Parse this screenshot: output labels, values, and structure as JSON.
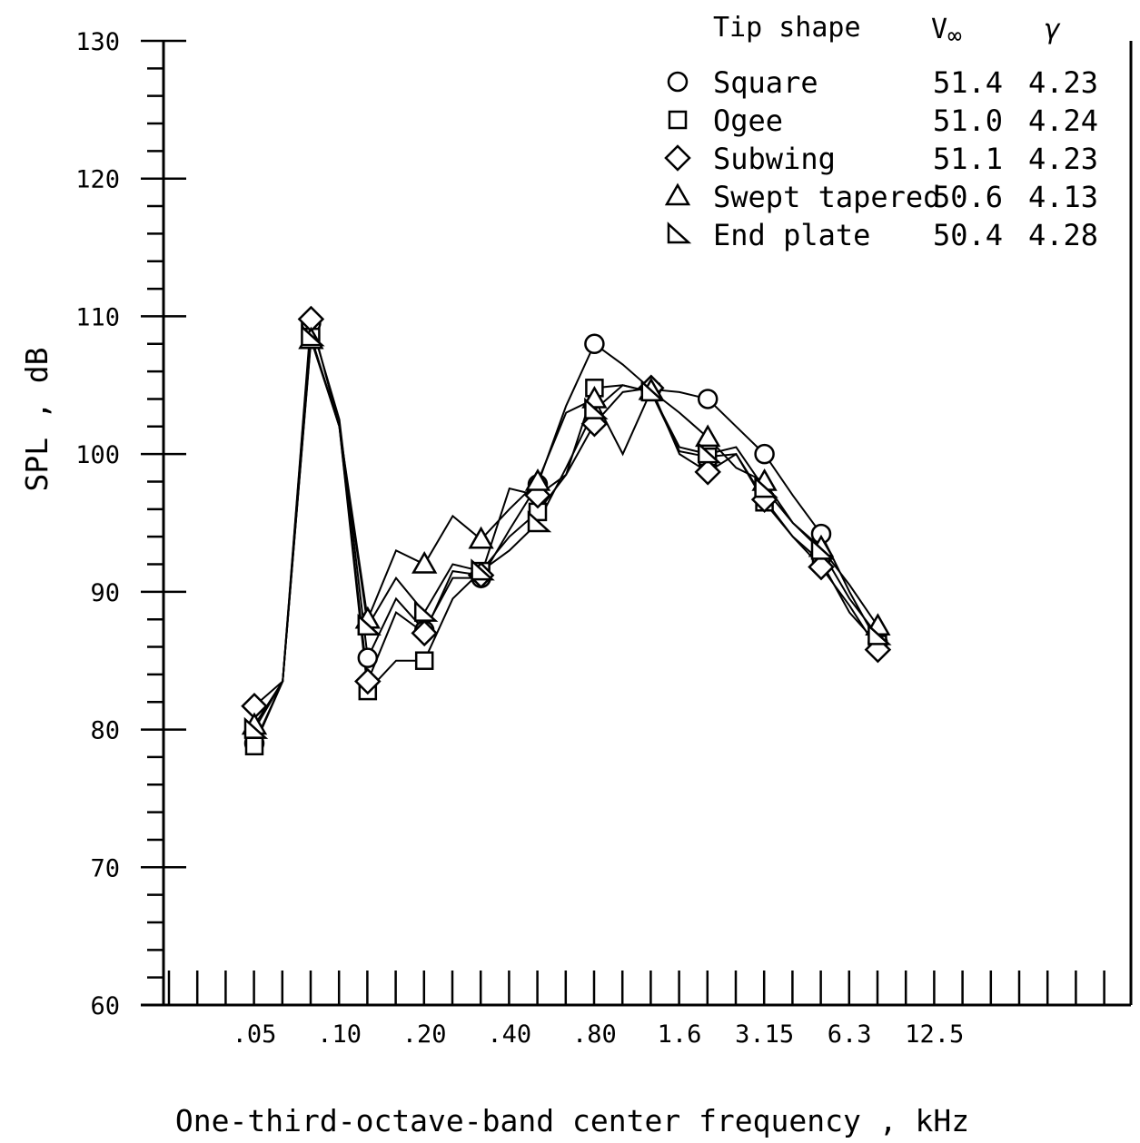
{
  "chart_data": {
    "type": "line",
    "title": "",
    "xlabel": "One-third-octave-band center frequency , kHz",
    "ylabel": "SPL , dB",
    "ylim": [
      60,
      130
    ],
    "yticks": [
      "60",
      "70",
      "80",
      "90",
      "100",
      "110",
      "120",
      "130"
    ],
    "x_tick_labels": [
      ".05",
      ".10",
      ".20",
      ".40",
      ".80",
      "1.6",
      "3.15",
      "6.3",
      "12.5"
    ],
    "x_bands_khz": [
      0.05,
      0.063,
      0.08,
      0.1,
      0.125,
      0.16,
      0.2,
      0.25,
      0.315,
      0.4,
      0.5,
      0.63,
      0.8,
      1.0,
      1.25,
      1.6,
      2.0,
      2.5,
      3.15,
      4.0,
      5.0,
      6.3,
      8.0,
      10.0,
      12.5
    ],
    "legend": {
      "headers": {
        "tip_shape": "Tip shape",
        "v": "V",
        "v_sub": "∞",
        "gamma": "γ"
      },
      "placement": "top-right"
    },
    "series": [
      {
        "name": "Square",
        "marker": "circle",
        "v_inf": "51.4",
        "gamma": "4.23",
        "x": [
          0.05,
          0.063,
          0.08,
          0.1,
          0.125,
          0.16,
          0.2,
          0.25,
          0.315,
          0.4,
          0.5,
          0.63,
          0.8,
          1.0,
          1.25,
          1.6,
          2.0,
          2.5,
          3.15,
          4.0,
          5.0,
          6.3,
          8.0
        ],
        "y": [
          79,
          83.5,
          109.5,
          102.5,
          85.2,
          89.5,
          87.2,
          91,
          91,
          94.5,
          97.8,
          103.5,
          108,
          106.5,
          104.7,
          104.5,
          104,
          102,
          100,
          97,
          94.2,
          90,
          86.3
        ],
        "markers_at": [
          0.05,
          0.08,
          0.125,
          0.2,
          0.315,
          0.5,
          0.8,
          1.25,
          2.0,
          3.15,
          5.0,
          8.0
        ]
      },
      {
        "name": "Ogee",
        "marker": "square",
        "v_inf": "51.0",
        "gamma": "4.24",
        "x": [
          0.05,
          0.063,
          0.08,
          0.1,
          0.125,
          0.16,
          0.2,
          0.25,
          0.315,
          0.4,
          0.5,
          0.63,
          0.8,
          1.0,
          1.25,
          1.6,
          2.0,
          2.5,
          3.15,
          4.0,
          5.0,
          6.3,
          8.0
        ],
        "y": [
          78.8,
          83.5,
          108.5,
          102,
          82.8,
          85,
          85,
          89.5,
          91.5,
          94,
          95.8,
          98.5,
          104.8,
          105,
          104.5,
          100.2,
          99.8,
          100,
          96.5,
          94,
          92.2,
          88.5,
          86.2
        ],
        "markers_at": [
          0.05,
          0.08,
          0.125,
          0.2,
          0.315,
          0.5,
          0.8,
          1.25,
          2.0,
          3.15,
          5.0,
          8.0
        ]
      },
      {
        "name": "Subwing",
        "marker": "diamond",
        "v_inf": "51.1",
        "gamma": "4.23",
        "x": [
          0.05,
          0.063,
          0.08,
          0.1,
          0.125,
          0.16,
          0.2,
          0.25,
          0.315,
          0.4,
          0.5,
          0.63,
          0.8,
          1.0,
          1.25,
          1.6,
          2.0,
          2.5,
          3.15,
          4.0,
          5.0,
          6.3,
          8.0
        ],
        "y": [
          81.7,
          83.5,
          109.8,
          102,
          83.5,
          88.5,
          87,
          91.5,
          91.2,
          97.5,
          97,
          98.5,
          102.2,
          104.5,
          104.8,
          100,
          98.7,
          100,
          96.7,
          94,
          91.8,
          89,
          85.8
        ],
        "markers_at": [
          0.05,
          0.08,
          0.125,
          0.2,
          0.315,
          0.5,
          0.8,
          1.25,
          2.0,
          3.15,
          5.0,
          8.0
        ]
      },
      {
        "name": "Swept tapered",
        "marker": "triangle",
        "v_inf": "50.6",
        "gamma": "4.13",
        "x": [
          0.05,
          0.063,
          0.08,
          0.1,
          0.125,
          0.16,
          0.2,
          0.25,
          0.315,
          0.4,
          0.5,
          0.63,
          0.8,
          1.0,
          1.25,
          1.6,
          2.0,
          2.5,
          3.15,
          4.0,
          5.0,
          6.3,
          8.0
        ],
        "y": [
          80.3,
          83.5,
          108.3,
          102,
          88,
          93,
          92,
          95.5,
          93.8,
          96,
          98,
          103,
          104,
          100,
          104.6,
          103,
          101.2,
          99,
          98,
          95,
          93.2,
          90.5,
          87.5
        ],
        "markers_at": [
          0.05,
          0.08,
          0.125,
          0.2,
          0.315,
          0.5,
          0.8,
          1.25,
          2.0,
          3.15,
          5.0,
          8.0
        ]
      },
      {
        "name": "End plate",
        "marker": "right-triangle",
        "v_inf": "50.4",
        "gamma": "4.28",
        "x": [
          0.05,
          0.063,
          0.08,
          0.1,
          0.125,
          0.16,
          0.2,
          0.25,
          0.315,
          0.4,
          0.5,
          0.63,
          0.8,
          1.0,
          1.25,
          1.6,
          2.0,
          2.5,
          3.15,
          4.0,
          5.0,
          6.3,
          8.0
        ],
        "y": [
          80,
          83.5,
          108.5,
          102,
          87.5,
          91,
          88.5,
          92,
          91.5,
          93,
          95,
          99,
          103.2,
          105,
          104.5,
          100.5,
          100,
          100.5,
          97.5,
          95,
          93,
          89.5,
          86.8
        ],
        "markers_at": [
          0.05,
          0.08,
          0.125,
          0.2,
          0.315,
          0.5,
          0.8,
          1.25,
          2.0,
          3.15,
          5.0,
          8.0
        ]
      }
    ],
    "grid": false
  }
}
